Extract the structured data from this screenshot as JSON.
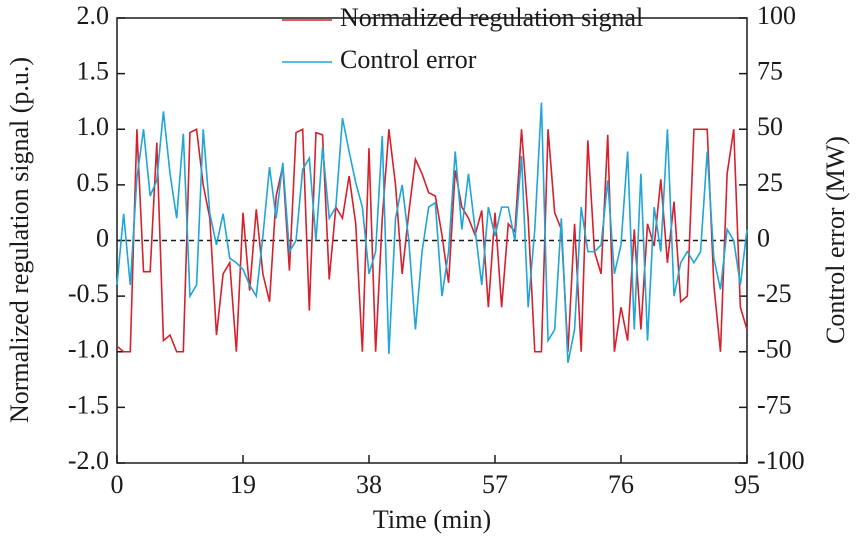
{
  "chart_data": {
    "type": "line",
    "x_label": "Time (min)",
    "y_label": "Normalized regulation signal (p.u.)",
    "y2_label": "Control error (MW)",
    "x": [
      0,
      1,
      2,
      3,
      4,
      5,
      6,
      7,
      8,
      9,
      10,
      11,
      12,
      13,
      14,
      15,
      16,
      17,
      18,
      19,
      20,
      21,
      22,
      23,
      24,
      25,
      26,
      27,
      28,
      29,
      30,
      31,
      32,
      33,
      34,
      35,
      36,
      37,
      38,
      39,
      40,
      41,
      42,
      43,
      44,
      45,
      46,
      47,
      48,
      49,
      50,
      51,
      52,
      53,
      54,
      55,
      56,
      57,
      58,
      59,
      60,
      61,
      62,
      63,
      64,
      65,
      66,
      67,
      68,
      69,
      70,
      71,
      72,
      73,
      74,
      75,
      76,
      77,
      78,
      79,
      80,
      81,
      82,
      83,
      84,
      85,
      86,
      87,
      88,
      89,
      90,
      91,
      92,
      93,
      94,
      95
    ],
    "series": [
      {
        "name": "Normalized regulation signal",
        "color": "#d7202c",
        "values": [
          -0.95,
          -1.0,
          -1.0,
          1.0,
          -0.28,
          -0.28,
          0.88,
          -0.9,
          -0.85,
          -1.0,
          -1.0,
          0.97,
          1.0,
          0.5,
          0.2,
          -0.85,
          -0.3,
          -0.2,
          -1.0,
          0.25,
          -0.45,
          0.28,
          -0.3,
          -0.55,
          0.4,
          0.67,
          -0.27,
          0.97,
          1.0,
          -0.63,
          0.97,
          0.95,
          -0.35,
          0.3,
          0.2,
          0.58,
          0.15,
          -1.0,
          0.83,
          -1.0,
          0.2,
          1.0,
          0.5,
          -0.3,
          0.25,
          0.73,
          0.6,
          0.43,
          0.4,
          0.05,
          -0.38,
          0.63,
          0.3,
          0.2,
          0.05,
          0.27,
          -0.6,
          0.25,
          -0.6,
          0.15,
          0.08,
          1.0,
          0.2,
          -1.0,
          -1.0,
          1.0,
          0.25,
          0.1,
          -1.0,
          0.15,
          -1.0,
          0.9,
          -0.1,
          -0.3,
          0.95,
          -1.0,
          -0.6,
          -0.9,
          0.1,
          -0.8,
          0.15,
          -0.05,
          0.55,
          -0.2,
          0.35,
          -0.55,
          -0.5,
          1.0,
          1.0,
          1.0,
          -0.4,
          -1.0,
          0.6,
          1.0,
          -0.6,
          -0.8
        ]
      },
      {
        "name": "Control error",
        "color": "#1ea6d8",
        "axis": "y2",
        "values": [
          -20,
          12,
          -20,
          28,
          50,
          20,
          27,
          58,
          30,
          10,
          48,
          -25,
          -20,
          50,
          12,
          -2,
          12,
          -8,
          -10,
          -13,
          -20,
          -25,
          2,
          33,
          10,
          35,
          -5,
          0,
          32,
          37,
          0,
          42,
          10,
          15,
          55,
          40,
          26,
          15,
          -15,
          -5,
          47,
          -51,
          10,
          25,
          0,
          -40,
          -5,
          15,
          17,
          -25,
          -5,
          40,
          5,
          30,
          5,
          -20,
          15,
          2,
          15,
          15,
          0,
          38,
          -30,
          5,
          62,
          -45,
          -40,
          10,
          -55,
          -40,
          15,
          -5,
          -5,
          -2,
          27,
          -15,
          -2,
          40,
          -40,
          30,
          -45,
          15,
          -5,
          50,
          -25,
          -10,
          -5,
          -10,
          -5,
          40,
          -8,
          -22,
          5,
          0,
          -20,
          5
        ]
      }
    ],
    "xlim": [
      0,
      95
    ],
    "xticks": [
      0,
      19,
      38,
      57,
      76,
      95
    ],
    "ylim": [
      -2,
      2
    ],
    "yticks": [
      {
        "value": -2,
        "label": "-2.0"
      },
      {
        "value": -1.5,
        "label": "-1.5"
      },
      {
        "value": -1,
        "label": "-1.0"
      },
      {
        "value": -0.5,
        "label": "-0.5"
      },
      0,
      {
        "value": 0.5,
        "label": "0.5"
      },
      {
        "value": 1,
        "label": "1.0"
      },
      {
        "value": 1.5,
        "label": "1.5"
      },
      {
        "value": 2,
        "label": "2.0"
      }
    ],
    "y2lim": [
      -100,
      100
    ],
    "y2ticks": [
      -100,
      -75,
      -50,
      -25,
      0,
      25,
      50,
      75,
      100
    ],
    "reference_line": 0,
    "legend": "upper right"
  }
}
